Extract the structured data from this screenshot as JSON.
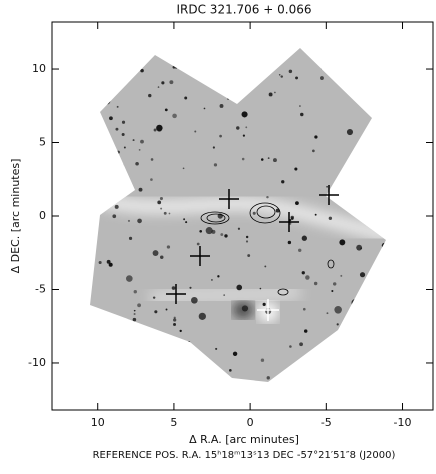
{
  "chart_data": {
    "type": "image",
    "title": "IRDC 321.706 + 0.066",
    "x_label": "Δ R.A. [arc minutes]",
    "y_label": "Δ DEC. [arc minutes]",
    "footer": "REFERENCE POS.  R.A. 15ʰ18ᵐ13ˢ13  DEC  -57°21′51″8  (J2000)",
    "xlim": [
      13,
      -12
    ],
    "ylim": [
      -13.2,
      13.2
    ],
    "xticks": [
      10,
      5,
      0,
      -5,
      -10
    ],
    "yticks": [
      10,
      5,
      0,
      -5,
      -10
    ]
  }
}
